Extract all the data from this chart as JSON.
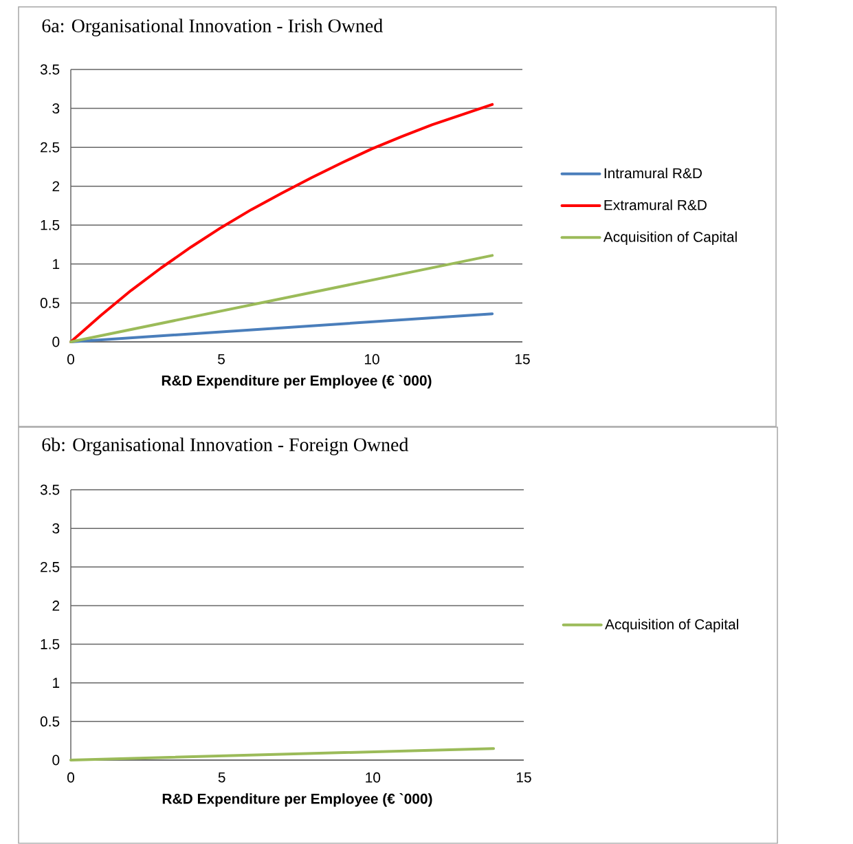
{
  "chart_data": [
    {
      "type": "line",
      "title": "6a: Organisational Innovation - Irish Owned",
      "xlabel": "R&D Expenditure per Employee (€ `000)",
      "xlim": [
        0,
        15
      ],
      "xticks": [
        0,
        5,
        10,
        15
      ],
      "ylim": [
        0,
        3.5
      ],
      "yticks": [
        0,
        0.5,
        1,
        1.5,
        2,
        2.5,
        3,
        3.5
      ],
      "grid": "y",
      "legend": "right",
      "line_style": "solid",
      "series": [
        {
          "name": "Intramural R&D",
          "color": "#4a7ebb",
          "x": [
            0,
            14
          ],
          "values": [
            0,
            0.36
          ]
        },
        {
          "name": "Extramural R&D",
          "color": "#ff0000",
          "x": [
            0,
            1,
            2,
            3,
            4,
            5,
            6,
            7,
            8,
            9,
            10,
            11,
            12,
            13,
            14
          ],
          "values": [
            0,
            0.34,
            0.66,
            0.95,
            1.22,
            1.47,
            1.7,
            1.91,
            2.11,
            2.3,
            2.48,
            2.64,
            2.79,
            2.92,
            3.05
          ]
        },
        {
          "name": "Acquisition of Capital",
          "color": "#9bbb59",
          "x": [
            0,
            14
          ],
          "values": [
            0,
            1.11
          ]
        }
      ]
    },
    {
      "type": "line",
      "title": "6b: Organisational Innovation -  Foreign Owned",
      "xlabel": "R&D Expenditure per Employee (€ `000)",
      "xlim": [
        0,
        15
      ],
      "xticks": [
        0,
        5,
        10,
        15
      ],
      "ylim": [
        0,
        3.5
      ],
      "yticks": [
        0,
        0.5,
        1,
        1.5,
        2,
        2.5,
        3,
        3.5
      ],
      "grid": "y",
      "legend": "right",
      "line_style": "solid",
      "series": [
        {
          "name": "Acquisition of Capital",
          "color": "#9bbb59",
          "x": [
            0,
            14
          ],
          "values": [
            0,
            0.15
          ]
        }
      ]
    }
  ]
}
